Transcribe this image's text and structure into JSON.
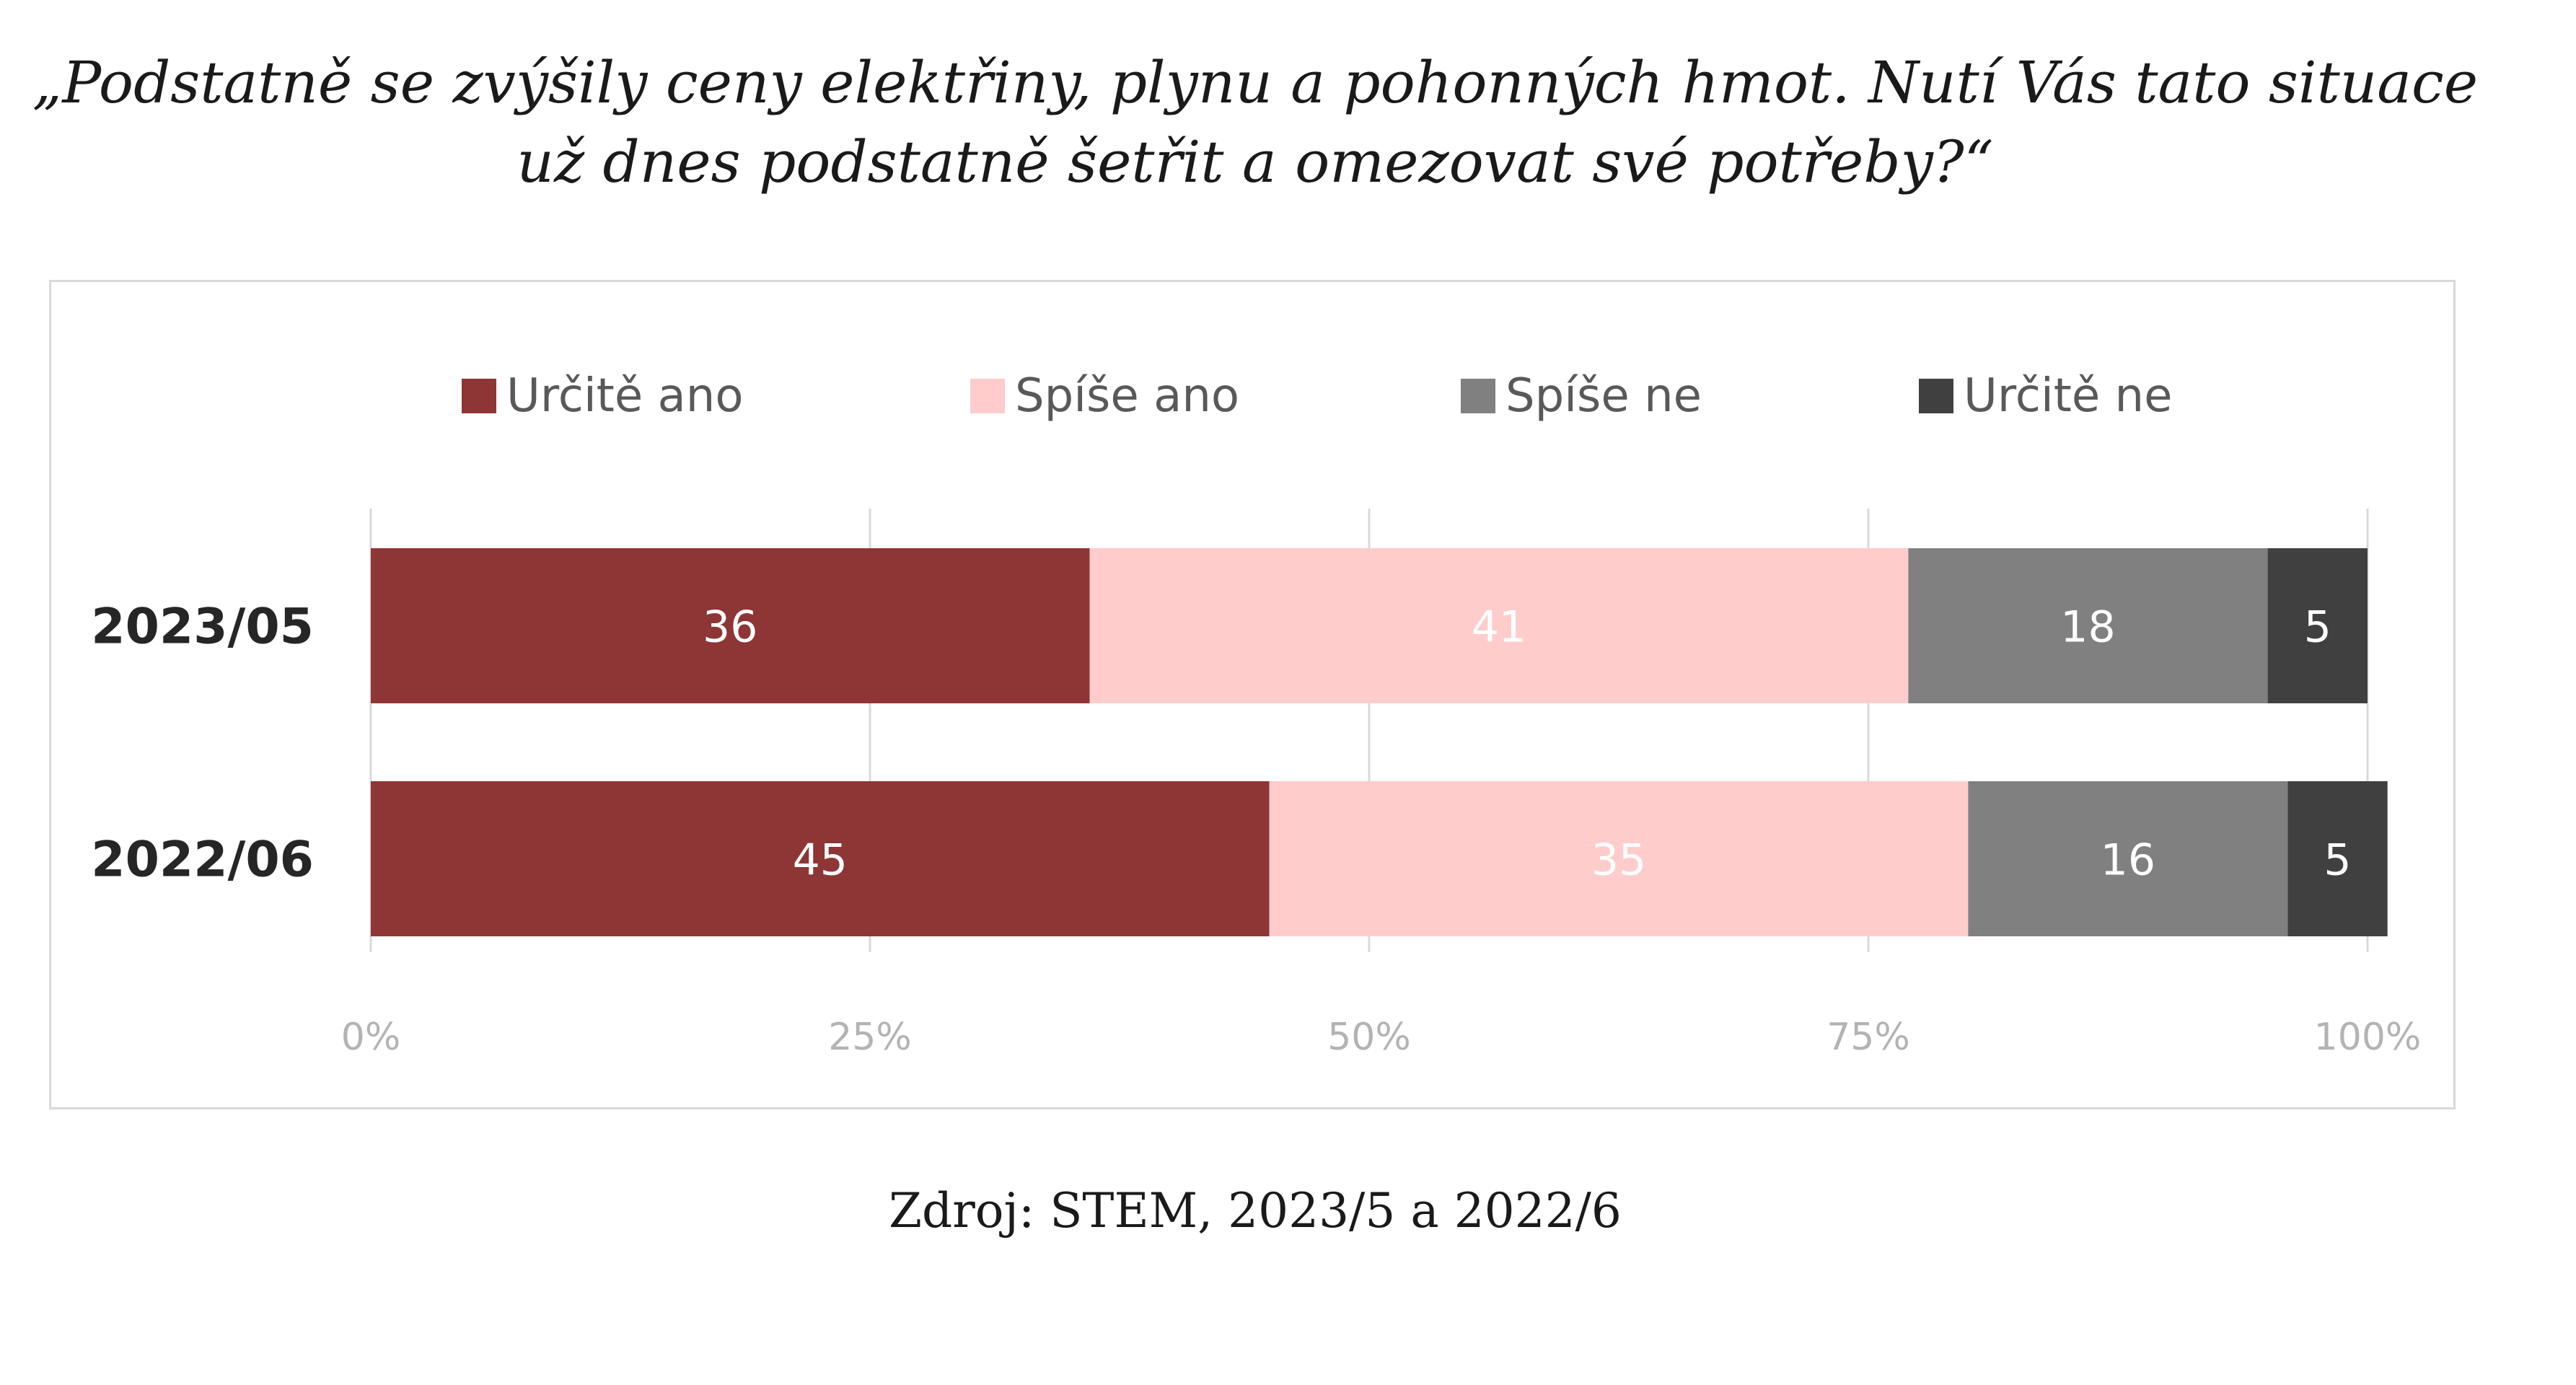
{
  "title_lines": [
    "„Podstatně se zvýšily ceny elektřiny, plynu a pohonných hmot. Nutí Vás tato situace",
    "už dnes podstatně šetřit a omezovat své potřeby?“"
  ],
  "source": "Zdroj: STEM, 2023/5 a 2022/6",
  "chart_data": {
    "type": "bar",
    "orientation": "horizontal",
    "stacked": true,
    "percent_stacked": true,
    "categories": [
      "2023/05",
      "2022/06"
    ],
    "series": [
      {
        "name": "Určitě ano",
        "color": "#8e3535",
        "label_color": "#ffffff",
        "values": [
          36,
          45
        ]
      },
      {
        "name": "Spíše ano",
        "color": "#ffcccc",
        "label_color": "#ffffff",
        "values": [
          41,
          35
        ]
      },
      {
        "name": "Spíše ne",
        "color": "#808080",
        "label_color": "#ffffff",
        "values": [
          18,
          16
        ]
      },
      {
        "name": "Určitě ne",
        "color": "#404040",
        "label_color": "#ffffff",
        "values": [
          5,
          5
        ]
      }
    ],
    "xticks": [
      "0%",
      "25%",
      "50%",
      "75%",
      "100%"
    ],
    "xlim": [
      0,
      100
    ],
    "grid": true,
    "legend_position": "top"
  }
}
